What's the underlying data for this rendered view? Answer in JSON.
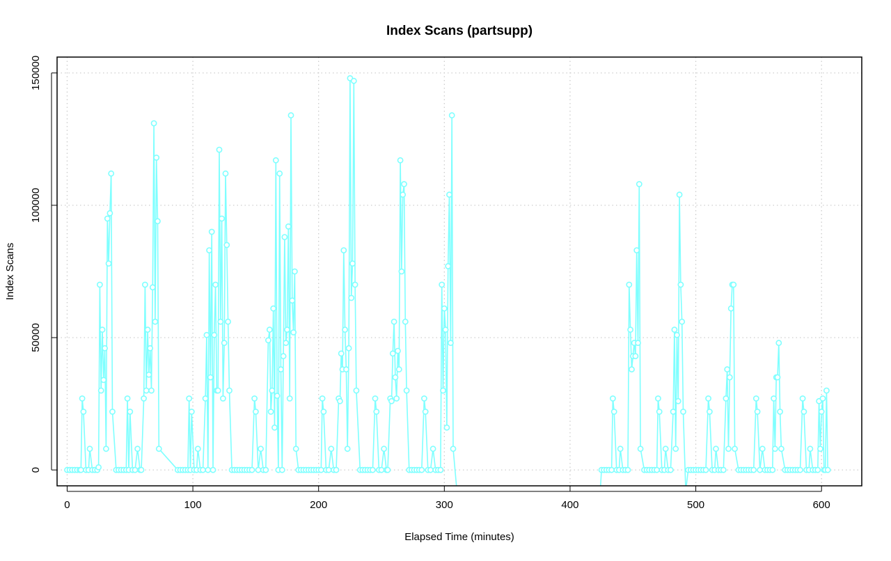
{
  "chart_data": {
    "type": "line",
    "title": "Index Scans (partsupp)",
    "xlabel": "Elapsed Time (minutes)",
    "ylabel": "Index Scans",
    "xlim": [
      -8,
      632
    ],
    "ylim": [
      -6000,
      156000
    ],
    "x_ticks": [
      0,
      100,
      200,
      300,
      400,
      500,
      600
    ],
    "y_ticks": [
      0,
      50000,
      100000,
      150000
    ],
    "grid": true,
    "legend": "none",
    "series": [
      {
        "color": "#7fffff",
        "markers": "open-circle",
        "points": [
          [
            0,
            0
          ],
          [
            2,
            0
          ],
          [
            4,
            0
          ],
          [
            6,
            0
          ],
          [
            8,
            0
          ],
          [
            10,
            0
          ],
          [
            11,
            0
          ],
          [
            12,
            27000
          ],
          [
            13,
            22000
          ],
          [
            15,
            0
          ],
          [
            17,
            0
          ],
          [
            18,
            8000
          ],
          [
            20,
            0
          ],
          [
            22,
            0
          ],
          [
            24,
            0
          ],
          [
            25,
            1000
          ],
          [
            26,
            70000
          ],
          [
            27,
            30000
          ],
          [
            28,
            53000
          ],
          [
            29,
            34000
          ],
          [
            30,
            46000
          ],
          [
            31,
            8000
          ],
          [
            32,
            95000
          ],
          [
            33,
            78000
          ],
          [
            34,
            97000
          ],
          [
            35,
            112000
          ],
          [
            36,
            22000
          ],
          [
            39,
            0
          ],
          [
            41,
            0
          ],
          [
            43,
            0
          ],
          [
            45,
            0
          ],
          [
            47,
            0
          ],
          [
            48,
            27000
          ],
          [
            49,
            0
          ],
          [
            50,
            22000
          ],
          [
            52,
            0
          ],
          [
            54,
            0
          ],
          [
            56,
            8000
          ],
          [
            58,
            0
          ],
          [
            59,
            0
          ],
          [
            61,
            27000
          ],
          [
            62,
            70000
          ],
          [
            63,
            30000
          ],
          [
            64,
            53000
          ],
          [
            65,
            36000
          ],
          [
            66,
            46000
          ],
          [
            67,
            30000
          ],
          [
            68,
            69000
          ],
          [
            69,
            131000
          ],
          [
            70,
            56000
          ],
          [
            71,
            118000
          ],
          [
            72,
            94000
          ],
          [
            73,
            8000
          ],
          [
            88,
            0
          ],
          [
            90,
            0
          ],
          [
            92,
            0
          ],
          [
            94,
            0
          ],
          [
            96,
            0
          ],
          [
            97,
            27000
          ],
          [
            98,
            0
          ],
          [
            99,
            22000
          ],
          [
            101,
            0
          ],
          [
            103,
            0
          ],
          [
            104,
            8000
          ],
          [
            106,
            0
          ],
          [
            108,
            0
          ],
          [
            110,
            27000
          ],
          [
            111,
            51000
          ],
          [
            112,
            0
          ],
          [
            113,
            83000
          ],
          [
            114,
            35000
          ],
          [
            115,
            90000
          ],
          [
            116,
            0
          ],
          [
            117,
            51000
          ],
          [
            118,
            70000
          ],
          [
            119,
            30000
          ],
          [
            120,
            30000
          ],
          [
            121,
            121000
          ],
          [
            122,
            56000
          ],
          [
            123,
            95000
          ],
          [
            124,
            27000
          ],
          [
            125,
            48000
          ],
          [
            126,
            112000
          ],
          [
            127,
            85000
          ],
          [
            128,
            56000
          ],
          [
            129,
            30000
          ],
          [
            131,
            0
          ],
          [
            133,
            0
          ],
          [
            135,
            0
          ],
          [
            137,
            0
          ],
          [
            139,
            0
          ],
          [
            141,
            0
          ],
          [
            143,
            0
          ],
          [
            145,
            0
          ],
          [
            147,
            0
          ],
          [
            149,
            27000
          ],
          [
            150,
            22000
          ],
          [
            152,
            0
          ],
          [
            154,
            8000
          ],
          [
            156,
            0
          ],
          [
            158,
            0
          ],
          [
            160,
            49000
          ],
          [
            161,
            53000
          ],
          [
            162,
            22000
          ],
          [
            163,
            30000
          ],
          [
            164,
            61000
          ],
          [
            165,
            16000
          ],
          [
            166,
            117000
          ],
          [
            167,
            28000
          ],
          [
            168,
            0
          ],
          [
            169,
            112000
          ],
          [
            170,
            38000
          ],
          [
            171,
            0
          ],
          [
            172,
            43000
          ],
          [
            173,
            88000
          ],
          [
            174,
            48000
          ],
          [
            175,
            53000
          ],
          [
            176,
            92000
          ],
          [
            177,
            27000
          ],
          [
            178,
            134000
          ],
          [
            179,
            64000
          ],
          [
            180,
            52000
          ],
          [
            181,
            75000
          ],
          [
            182,
            8000
          ],
          [
            184,
            0
          ],
          [
            186,
            0
          ],
          [
            188,
            0
          ],
          [
            190,
            0
          ],
          [
            192,
            0
          ],
          [
            194,
            0
          ],
          [
            196,
            0
          ],
          [
            198,
            0
          ],
          [
            200,
            0
          ],
          [
            202,
            0
          ],
          [
            203,
            27000
          ],
          [
            204,
            22000
          ],
          [
            206,
            0
          ],
          [
            208,
            0
          ],
          [
            210,
            8000
          ],
          [
            212,
            0
          ],
          [
            214,
            0
          ],
          [
            216,
            27000
          ],
          [
            217,
            26000
          ],
          [
            218,
            44000
          ],
          [
            219,
            38000
          ],
          [
            220,
            83000
          ],
          [
            221,
            53000
          ],
          [
            222,
            38000
          ],
          [
            223,
            8000
          ],
          [
            224,
            46000
          ],
          [
            225,
            148000
          ],
          [
            226,
            65000
          ],
          [
            227,
            78000
          ],
          [
            228,
            147000
          ],
          [
            229,
            70000
          ],
          [
            230,
            30000
          ],
          [
            233,
            0
          ],
          [
            235,
            0
          ],
          [
            237,
            0
          ],
          [
            239,
            0
          ],
          [
            241,
            0
          ],
          [
            243,
            0
          ],
          [
            245,
            27000
          ],
          [
            246,
            22000
          ],
          [
            248,
            0
          ],
          [
            250,
            0
          ],
          [
            252,
            8000
          ],
          [
            254,
            0
          ],
          [
            255,
            0
          ],
          [
            257,
            27000
          ],
          [
            258,
            26000
          ],
          [
            259,
            44000
          ],
          [
            260,
            56000
          ],
          [
            261,
            35000
          ],
          [
            262,
            27000
          ],
          [
            263,
            45000
          ],
          [
            264,
            38000
          ],
          [
            265,
            117000
          ],
          [
            266,
            75000
          ],
          [
            267,
            104000
          ],
          [
            268,
            108000
          ],
          [
            269,
            56000
          ],
          [
            270,
            30000
          ],
          [
            272,
            0
          ],
          [
            274,
            0
          ],
          [
            276,
            0
          ],
          [
            278,
            0
          ],
          [
            280,
            0
          ],
          [
            282,
            0
          ],
          [
            284,
            27000
          ],
          [
            285,
            22000
          ],
          [
            287,
            0
          ],
          [
            289,
            0
          ],
          [
            291,
            8000
          ],
          [
            293,
            0
          ],
          [
            295,
            0
          ],
          [
            297,
            0
          ],
          [
            298,
            70000
          ],
          [
            299,
            30000
          ],
          [
            300,
            61000
          ],
          [
            301,
            53000
          ],
          [
            302,
            16000
          ],
          [
            303,
            77000
          ],
          [
            304,
            104000
          ],
          [
            305,
            48000
          ],
          [
            306,
            134000
          ],
          [
            307,
            8000
          ],
          [
            310,
            -8000
          ],
          [
            424,
            -8000
          ],
          [
            425,
            0
          ],
          [
            427,
            0
          ],
          [
            429,
            0
          ],
          [
            431,
            0
          ],
          [
            433,
            0
          ],
          [
            434,
            27000
          ],
          [
            435,
            22000
          ],
          [
            437,
            0
          ],
          [
            439,
            0
          ],
          [
            440,
            8000
          ],
          [
            442,
            0
          ],
          [
            444,
            0
          ],
          [
            446,
            0
          ],
          [
            447,
            70000
          ],
          [
            448,
            53000
          ],
          [
            449,
            38000
          ],
          [
            450,
            43000
          ],
          [
            451,
            48000
          ],
          [
            452,
            43000
          ],
          [
            453,
            83000
          ],
          [
            454,
            48000
          ],
          [
            455,
            108000
          ],
          [
            456,
            8000
          ],
          [
            459,
            0
          ],
          [
            461,
            0
          ],
          [
            463,
            0
          ],
          [
            465,
            0
          ],
          [
            467,
            0
          ],
          [
            469,
            0
          ],
          [
            470,
            27000
          ],
          [
            471,
            22000
          ],
          [
            473,
            0
          ],
          [
            475,
            0
          ],
          [
            476,
            8000
          ],
          [
            478,
            0
          ],
          [
            480,
            0
          ],
          [
            482,
            22000
          ],
          [
            483,
            53000
          ],
          [
            484,
            8000
          ],
          [
            485,
            51000
          ],
          [
            486,
            26000
          ],
          [
            487,
            104000
          ],
          [
            488,
            70000
          ],
          [
            489,
            56000
          ],
          [
            490,
            22000
          ],
          [
            492,
            -8000
          ],
          [
            494,
            0
          ],
          [
            496,
            0
          ],
          [
            498,
            0
          ],
          [
            500,
            0
          ],
          [
            502,
            0
          ],
          [
            504,
            0
          ],
          [
            506,
            0
          ],
          [
            508,
            0
          ],
          [
            510,
            27000
          ],
          [
            511,
            22000
          ],
          [
            513,
            0
          ],
          [
            515,
            0
          ],
          [
            516,
            8000
          ],
          [
            518,
            0
          ],
          [
            520,
            0
          ],
          [
            522,
            0
          ],
          [
            524,
            27000
          ],
          [
            525,
            38000
          ],
          [
            526,
            8000
          ],
          [
            527,
            35000
          ],
          [
            528,
            61000
          ],
          [
            529,
            70000
          ],
          [
            530,
            70000
          ],
          [
            531,
            8000
          ],
          [
            534,
            0
          ],
          [
            536,
            0
          ],
          [
            538,
            0
          ],
          [
            540,
            0
          ],
          [
            542,
            0
          ],
          [
            544,
            0
          ],
          [
            546,
            0
          ],
          [
            548,
            27000
          ],
          [
            549,
            22000
          ],
          [
            551,
            0
          ],
          [
            553,
            8000
          ],
          [
            555,
            0
          ],
          [
            557,
            0
          ],
          [
            559,
            0
          ],
          [
            561,
            0
          ],
          [
            562,
            27000
          ],
          [
            563,
            8000
          ],
          [
            564,
            35000
          ],
          [
            565,
            35000
          ],
          [
            566,
            48000
          ],
          [
            567,
            22000
          ],
          [
            568,
            8000
          ],
          [
            571,
            0
          ],
          [
            573,
            0
          ],
          [
            575,
            0
          ],
          [
            577,
            0
          ],
          [
            579,
            0
          ],
          [
            581,
            0
          ],
          [
            583,
            0
          ],
          [
            585,
            27000
          ],
          [
            586,
            22000
          ],
          [
            588,
            0
          ],
          [
            590,
            0
          ],
          [
            591,
            8000
          ],
          [
            593,
            0
          ],
          [
            595,
            0
          ],
          [
            597,
            0
          ],
          [
            598,
            26000
          ],
          [
            599,
            8000
          ],
          [
            600,
            22000
          ],
          [
            601,
            27000
          ],
          [
            602,
            0
          ],
          [
            603,
            0
          ],
          [
            604,
            30000
          ],
          [
            605,
            0
          ]
        ]
      }
    ]
  }
}
